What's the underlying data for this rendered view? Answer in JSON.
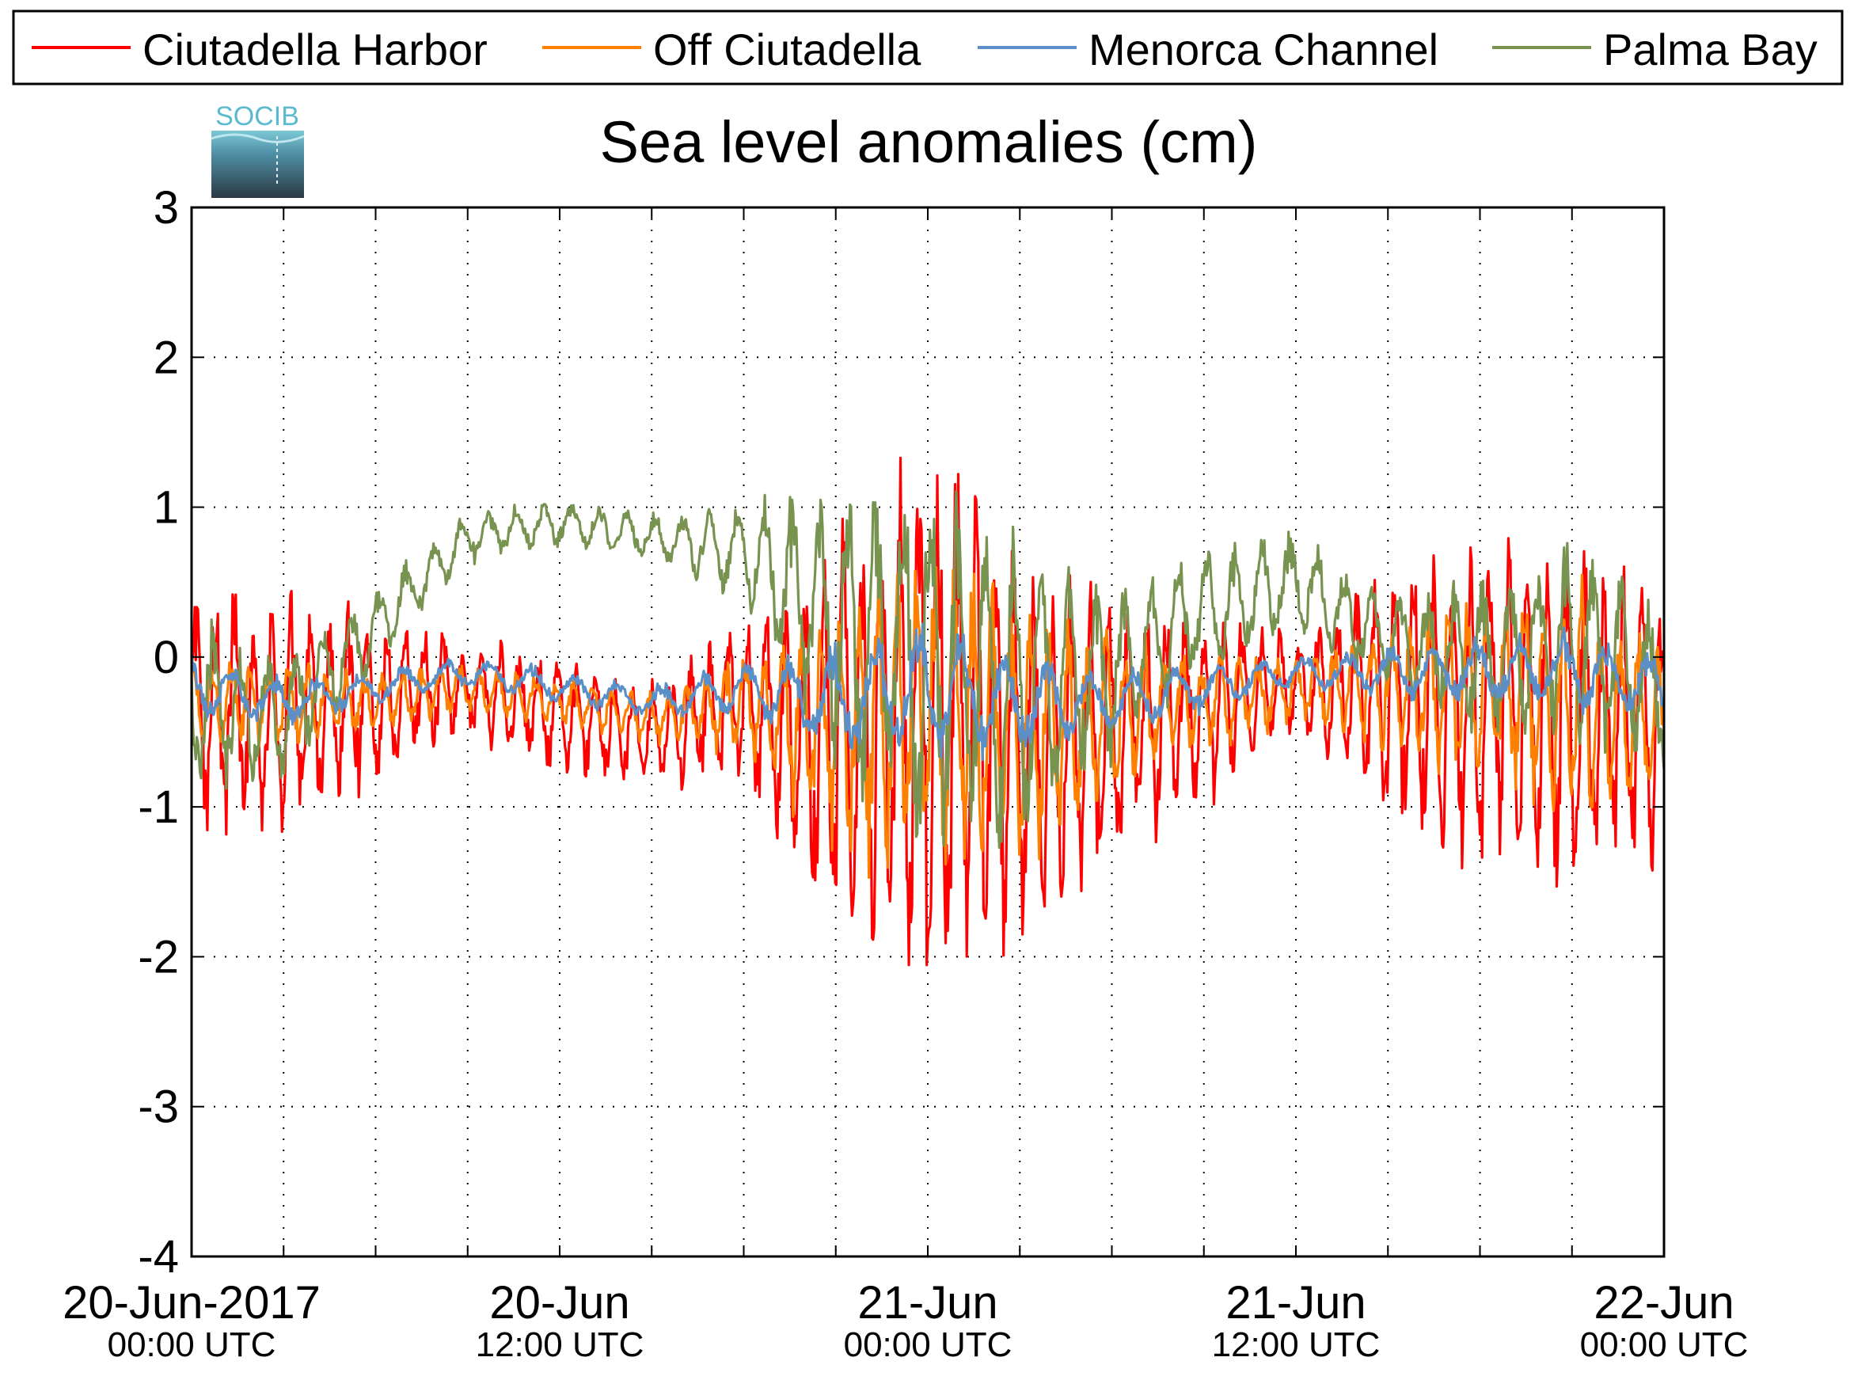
{
  "logo": {
    "text": "SOCIB"
  },
  "chart_data": {
    "type": "line",
    "title": "Sea level anomalies (cm)",
    "xlabel": "",
    "ylabel": "",
    "ylim": [
      -4,
      3
    ],
    "yticks": [
      "3",
      "2",
      "1",
      "0",
      "-1",
      "-2",
      "-3",
      "-4"
    ],
    "xlim": [
      "2017-06-20 00:00",
      "2017-06-22 00:00"
    ],
    "xticks": [
      {
        "date": "20-Jun-2017",
        "time": "00:00 UTC",
        "at": "2017-06-20 00:00"
      },
      {
        "date": "20-Jun",
        "time": "12:00 UTC",
        "at": "2017-06-20 12:00"
      },
      {
        "date": "21-Jun",
        "time": "00:00 UTC",
        "at": "2017-06-21 00:00"
      },
      {
        "date": "21-Jun",
        "time": "12:00 UTC",
        "at": "2017-06-21 12:00"
      },
      {
        "date": "22-Jun",
        "time": "00:00 UTC",
        "at": "2017-06-22 00:00"
      }
    ],
    "grid": true,
    "legend_position": "top",
    "series": [
      {
        "name": "Ciutadella Harbor",
        "color": "#ff0000",
        "x": [
          "2017-06-20 00:00",
          "2017-06-20 03:00",
          "2017-06-20 06:00",
          "2017-06-20 09:00",
          "2017-06-20 12:00",
          "2017-06-20 15:00",
          "2017-06-20 18:00",
          "2017-06-20 21:00",
          "2017-06-21 00:00",
          "2017-06-21 03:00",
          "2017-06-21 06:00",
          "2017-06-21 09:00",
          "2017-06-21 12:00",
          "2017-06-21 15:00",
          "2017-06-21 18:00",
          "2017-06-21 21:00",
          "2017-06-22 00:00"
        ],
        "y": [
          -0.3,
          -0.4,
          -0.3,
          -0.2,
          -0.4,
          -0.5,
          -0.3,
          -0.6,
          -0.4,
          -0.6,
          -0.5,
          -0.3,
          -0.2,
          -0.2,
          -0.3,
          -0.4,
          -0.5
        ],
        "amplitude": [
          0.8,
          0.7,
          0.5,
          0.3,
          0.35,
          0.3,
          0.5,
          1.3,
          1.8,
          1.3,
          0.8,
          0.6,
          0.3,
          0.8,
          1.0,
          1.1,
          0.9
        ]
      },
      {
        "name": "Off Ciutadella",
        "color": "#ff8000",
        "x": [
          "2017-06-20 00:00",
          "2017-06-20 03:00",
          "2017-06-20 06:00",
          "2017-06-20 09:00",
          "2017-06-20 12:00",
          "2017-06-20 15:00",
          "2017-06-20 18:00",
          "2017-06-20 21:00",
          "2017-06-21 00:00",
          "2017-06-21 03:00",
          "2017-06-21 06:00",
          "2017-06-21 09:00",
          "2017-06-21 12:00",
          "2017-06-21 15:00",
          "2017-06-21 18:00",
          "2017-06-21 21:00",
          "2017-06-22 00:00"
        ],
        "y": [
          -0.3,
          -0.3,
          -0.3,
          -0.2,
          -0.3,
          -0.4,
          -0.3,
          -0.5,
          -0.3,
          -0.5,
          -0.4,
          -0.3,
          -0.2,
          -0.2,
          -0.2,
          -0.3,
          -0.4
        ],
        "amplitude": [
          0.3,
          0.25,
          0.2,
          0.15,
          0.15,
          0.15,
          0.3,
          0.8,
          1.0,
          0.8,
          0.5,
          0.35,
          0.2,
          0.4,
          0.6,
          0.7,
          0.5
        ]
      },
      {
        "name": "Menorca Channel",
        "color": "#5b8fc7",
        "x": [
          "2017-06-20 00:00",
          "2017-06-20 03:00",
          "2017-06-20 06:00",
          "2017-06-20 09:00",
          "2017-06-20 12:00",
          "2017-06-20 15:00",
          "2017-06-20 18:00",
          "2017-06-20 21:00",
          "2017-06-21 00:00",
          "2017-06-21 03:00",
          "2017-06-21 06:00",
          "2017-06-21 09:00",
          "2017-06-21 12:00",
          "2017-06-21 15:00",
          "2017-06-21 18:00",
          "2017-06-21 21:00",
          "2017-06-22 00:00"
        ],
        "y": [
          -0.2,
          -0.3,
          -0.2,
          -0.1,
          -0.2,
          -0.3,
          -0.2,
          -0.3,
          -0.2,
          -0.3,
          -0.3,
          -0.2,
          -0.1,
          -0.1,
          -0.1,
          -0.1,
          -0.2
        ],
        "amplitude": [
          0.2,
          0.15,
          0.1,
          0.1,
          0.1,
          0.1,
          0.15,
          0.35,
          0.4,
          0.3,
          0.2,
          0.15,
          0.1,
          0.15,
          0.2,
          0.25,
          0.2
        ]
      },
      {
        "name": "Palma Bay",
        "color": "#77934f",
        "x": [
          "2017-06-20 00:00",
          "2017-06-20 03:00",
          "2017-06-20 06:00",
          "2017-06-20 09:00",
          "2017-06-20 12:00",
          "2017-06-20 15:00",
          "2017-06-20 18:00",
          "2017-06-20 21:00",
          "2017-06-21 00:00",
          "2017-06-21 03:00",
          "2017-06-21 06:00",
          "2017-06-21 09:00",
          "2017-06-21 12:00",
          "2017-06-21 15:00",
          "2017-06-21 18:00",
          "2017-06-21 21:00",
          "2017-06-22 00:00"
        ],
        "y": [
          -0.3,
          -0.4,
          0.2,
          0.8,
          0.9,
          0.8,
          0.7,
          0.2,
          0.0,
          -0.2,
          -0.1,
          0.3,
          0.5,
          0.1,
          0.0,
          0.1,
          -0.2
        ],
        "amplitude": [
          0.5,
          0.4,
          0.25,
          0.15,
          0.15,
          0.15,
          0.3,
          0.9,
          1.2,
          0.9,
          0.5,
          0.4,
          0.3,
          0.3,
          0.5,
          0.6,
          0.5
        ]
      }
    ]
  }
}
